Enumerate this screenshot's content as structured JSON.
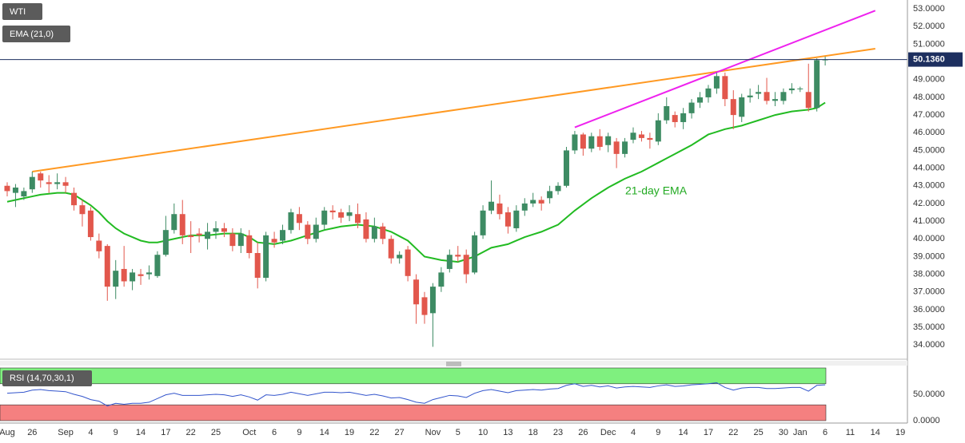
{
  "chart_data": {
    "type": "candlestick",
    "name": "WTI",
    "up_color": "#3d8b63",
    "down_color": "#e2574c",
    "grid": true,
    "categories": [
      "Aug",
      null,
      null,
      "26",
      null,
      null,
      null,
      "Sep",
      null,
      null,
      "4",
      null,
      null,
      "9",
      null,
      null,
      "14",
      null,
      null,
      "17",
      null,
      null,
      "22",
      null,
      null,
      "25",
      null,
      null,
      null,
      "Oct",
      null,
      null,
      "6",
      null,
      null,
      "9",
      null,
      null,
      "14",
      null,
      null,
      "19",
      null,
      null,
      "22",
      null,
      null,
      "27",
      null,
      null,
      null,
      "Nov",
      null,
      null,
      "5",
      null,
      null,
      "10",
      null,
      null,
      "13",
      null,
      null,
      "18",
      null,
      null,
      "23",
      null,
      null,
      "26",
      null,
      null,
      "Dec",
      null,
      null,
      "4",
      null,
      null,
      "9",
      null,
      null,
      "14",
      null,
      null,
      "17",
      null,
      null,
      "22",
      null,
      null,
      "25",
      null,
      null,
      "30",
      null,
      "Jan",
      null,
      null,
      "6",
      null,
      null,
      "11",
      null,
      null,
      "14",
      null,
      null,
      "19"
    ],
    "open": [
      43.0,
      42.6,
      42.4,
      42.8,
      43.7,
      43.2,
      43.1,
      43.2,
      42.6,
      41.9,
      41.6,
      39.9,
      39.6,
      37.3,
      38.3,
      37.6,
      38.0,
      38.0,
      37.9,
      39.1,
      40.5,
      41.4,
      40.2,
      40.3,
      40.0,
      40.4,
      40.6,
      40.3,
      39.6,
      40.2,
      39.2,
      37.8,
      40.0,
      39.9,
      40.5,
      41.4,
      40.8,
      40.0,
      40.8,
      41.6,
      41.5,
      41.3,
      41.4,
      41.1,
      40.0,
      40.7,
      40.0,
      38.9,
      39.4,
      37.7,
      36.7,
      35.8,
      37.3,
      38.3,
      39.1,
      39.1,
      38.1,
      40.2,
      41.6,
      42.0,
      41.5,
      40.6,
      41.6,
      42.0,
      42.2,
      42.3,
      42.7,
      43.0,
      45.0,
      45.9,
      45.1,
      45.8,
      45.3,
      45.5,
      44.8,
      45.6,
      45.9,
      45.7,
      45.5,
      46.7,
      47.0,
      46.6,
      47.1,
      47.7,
      48.0,
      48.5,
      49.2,
      47.9,
      46.9,
      48.0,
      48.2,
      48.3,
      47.8,
      47.8,
      48.4,
      48.5,
      48.3,
      47.4,
      50.1,
      null,
      null,
      null,
      null,
      null,
      null,
      null,
      null,
      null
    ],
    "high": [
      43.2,
      43.1,
      42.9,
      43.8,
      43.8,
      43.6,
      43.7,
      43.5,
      42.9,
      42.2,
      41.8,
      40.3,
      39.7,
      38.8,
      39.6,
      38.3,
      38.3,
      38.5,
      39.3,
      41.3,
      42.0,
      42.2,
      41.0,
      40.6,
      40.9,
      41.0,
      40.9,
      40.6,
      40.6,
      40.5,
      39.8,
      40.4,
      40.4,
      40.8,
      41.7,
      41.8,
      41.0,
      41.2,
      41.8,
      41.9,
      41.7,
      41.9,
      42.0,
      41.5,
      41.2,
      40.9,
      40.2,
      39.3,
      39.6,
      38.0,
      37.0,
      37.5,
      38.4,
      39.4,
      39.6,
      39.4,
      40.4,
      41.9,
      43.3,
      42.5,
      41.8,
      41.9,
      42.3,
      42.6,
      42.4,
      43.0,
      43.2,
      45.2,
      46.1,
      46.0,
      46.0,
      46.2,
      46.0,
      45.7,
      45.7,
      46.3,
      46.1,
      46.0,
      47.1,
      48.0,
      47.2,
      47.4,
      47.9,
      48.3,
      48.7,
      49.4,
      49.4,
      48.4,
      48.2,
      48.5,
      48.7,
      49.1,
      48.3,
      48.5,
      48.8,
      48.6,
      49.9,
      50.2,
      50.3,
      null,
      null,
      null,
      null,
      null,
      null,
      null,
      null,
      null
    ],
    "low": [
      42.4,
      41.8,
      42.2,
      42.6,
      42.9,
      42.6,
      42.8,
      42.6,
      41.6,
      40.7,
      39.9,
      38.9,
      36.5,
      36.6,
      37.3,
      37.1,
      37.4,
      37.7,
      37.8,
      39.0,
      40.3,
      39.7,
      39.2,
      39.8,
      39.4,
      40.0,
      40.1,
      39.3,
      39.2,
      38.9,
      37.2,
      37.6,
      39.5,
      39.7,
      40.3,
      40.5,
      39.7,
      39.8,
      40.5,
      41.1,
      40.9,
      41.0,
      40.6,
      39.8,
      39.8,
      39.7,
      38.6,
      38.6,
      37.6,
      35.2,
      35.2,
      33.9,
      37.0,
      38.1,
      38.7,
      37.5,
      38.0,
      40.0,
      41.4,
      41.1,
      40.3,
      40.4,
      41.3,
      41.8,
      41.6,
      42.0,
      42.5,
      42.9,
      44.8,
      44.7,
      44.9,
      45.0,
      44.9,
      44.0,
      44.6,
      45.4,
      45.5,
      45.1,
      45.3,
      46.5,
      46.3,
      46.2,
      46.8,
      47.4,
      47.7,
      48.2,
      47.5,
      46.2,
      46.6,
      47.7,
      47.9,
      47.6,
      47.5,
      47.6,
      48.2,
      48.3,
      47.2,
      47.2,
      49.8,
      null,
      null,
      null,
      null,
      null,
      null,
      null,
      null,
      null
    ],
    "close": [
      42.7,
      42.9,
      42.7,
      43.5,
      43.3,
      43.1,
      43.2,
      43.0,
      41.9,
      41.4,
      40.1,
      39.3,
      37.3,
      38.2,
      37.6,
      38.1,
      37.9,
      38.1,
      39.1,
      40.5,
      41.4,
      40.2,
      40.1,
      40.2,
      40.4,
      40.6,
      40.4,
      39.6,
      40.3,
      39.2,
      37.8,
      40.2,
      39.8,
      40.5,
      41.5,
      40.9,
      40.0,
      40.8,
      41.6,
      41.5,
      41.2,
      41.5,
      40.9,
      40.0,
      40.7,
      40.0,
      38.9,
      39.1,
      37.9,
      36.3,
      35.7,
      37.3,
      38.1,
      39.1,
      39.0,
      38.0,
      40.2,
      41.6,
      42.1,
      41.4,
      40.7,
      41.6,
      42.0,
      42.2,
      42.0,
      42.7,
      43.0,
      45.0,
      45.9,
      45.1,
      45.8,
      45.2,
      45.8,
      44.8,
      45.5,
      46.0,
      45.7,
      45.6,
      46.7,
      47.5,
      46.6,
      47.1,
      47.7,
      48.0,
      48.5,
      49.2,
      47.9,
      47.0,
      48.0,
      48.1,
      48.3,
      47.8,
      47.9,
      48.3,
      48.5,
      48.5,
      47.4,
      50.1,
      50.136,
      null,
      null,
      null,
      null,
      null,
      null,
      null,
      null,
      null
    ],
    "indicator": {
      "name": "EMA (21,0)",
      "color": "#22bb22",
      "values": [
        42.1,
        42.2,
        42.3,
        42.4,
        42.5,
        42.55,
        42.6,
        42.6,
        42.5,
        42.2,
        41.9,
        41.5,
        41.0,
        40.6,
        40.3,
        40.1,
        39.9,
        39.8,
        39.8,
        39.9,
        40.0,
        40.1,
        40.2,
        40.2,
        40.2,
        40.25,
        40.3,
        40.3,
        40.3,
        40.1,
        39.8,
        39.75,
        39.7,
        39.8,
        39.9,
        40.05,
        40.2,
        40.35,
        40.5,
        40.6,
        40.7,
        40.75,
        40.8,
        40.75,
        40.7,
        40.55,
        40.4,
        40.15,
        39.9,
        39.45,
        39.0,
        38.9,
        38.8,
        38.75,
        38.7,
        38.85,
        39.0,
        39.25,
        39.5,
        39.6,
        39.7,
        39.9,
        40.1,
        40.25,
        40.4,
        40.6,
        40.8,
        41.2,
        41.6,
        41.95,
        42.3,
        42.6,
        42.9,
        43.15,
        43.4,
        43.6,
        43.8,
        44.05,
        44.3,
        44.55,
        44.8,
        45.05,
        45.3,
        45.6,
        45.9,
        46.05,
        46.2,
        46.3,
        46.4,
        46.55,
        46.7,
        46.85,
        47.0,
        47.1,
        47.2,
        47.25,
        47.3,
        47.4,
        47.7,
        null,
        null,
        null,
        null,
        null,
        null,
        null,
        null,
        null
      ]
    },
    "annotation": "21-day EMA",
    "trendlines": [
      {
        "color": "#ff9922",
        "points": [
          [
            3,
            43.8
          ],
          [
            104,
            50.75
          ]
        ]
      },
      {
        "color": "#ee22ee",
        "points": [
          [
            68,
            46.3
          ],
          [
            104,
            52.9
          ]
        ]
      }
    ],
    "last_price": {
      "value": 50.136,
      "label": "50.1360"
    },
    "ylim": [
      33.2,
      53.5
    ],
    "yticks": [
      {
        "value": 34,
        "label": "34.0000"
      },
      {
        "value": 35,
        "label": "35.0000"
      },
      {
        "value": 36,
        "label": "36.0000"
      },
      {
        "value": 37,
        "label": "37.0000"
      },
      {
        "value": 38,
        "label": "38.0000"
      },
      {
        "value": 39,
        "label": "39.0000"
      },
      {
        "value": 40,
        "label": "40.0000"
      },
      {
        "value": 41,
        "label": "41.0000"
      },
      {
        "value": 42,
        "label": "42.0000"
      },
      {
        "value": 43,
        "label": "43.0000"
      },
      {
        "value": 44,
        "label": "44.0000"
      },
      {
        "value": 45,
        "label": "45.0000"
      },
      {
        "value": 46,
        "label": "46.0000"
      },
      {
        "value": 47,
        "label": "47.0000"
      },
      {
        "value": 48,
        "label": "48.0000"
      },
      {
        "value": 49,
        "label": "49.0000"
      },
      {
        "value": 50,
        "label": "50.0000"
      },
      {
        "value": 51,
        "label": "51.0000"
      },
      {
        "value": 52,
        "label": "52.0000"
      },
      {
        "value": 53,
        "label": "53.0000"
      }
    ],
    "rsi": {
      "type": "line",
      "name": "RSI (14,70,30,1)",
      "color": "#3355cc",
      "values": [
        52,
        53,
        54,
        58,
        59,
        57,
        56,
        55,
        50,
        46,
        40,
        37,
        28,
        33,
        31,
        33,
        33,
        35,
        42,
        49,
        52,
        48,
        48,
        48,
        49,
        50,
        49,
        46,
        49,
        45,
        39,
        49,
        48,
        50,
        54,
        51,
        48,
        51,
        54,
        54,
        53,
        54,
        51,
        48,
        50,
        47,
        43,
        44,
        40,
        35,
        33,
        40,
        44,
        48,
        47,
        44,
        52,
        57,
        59,
        56,
        53,
        57,
        58,
        59,
        58,
        60,
        61,
        67,
        70,
        65,
        67,
        64,
        66,
        62,
        64,
        65,
        64,
        63,
        66,
        68,
        65,
        66,
        68,
        69,
        70,
        72,
        63,
        58,
        62,
        63,
        63,
        61,
        61,
        62,
        63,
        63,
        56,
        67,
        68,
        null,
        null,
        null,
        null,
        null,
        null,
        null,
        null,
        null
      ],
      "ylim": [
        0,
        100
      ],
      "yticks": [
        {
          "value": 0,
          "label": "0.0000"
        },
        {
          "value": 50,
          "label": "50.0000"
        }
      ],
      "bands": [
        {
          "range": [
            70,
            100
          ],
          "color": "#7ff07f"
        },
        {
          "range": [
            0,
            30
          ],
          "color": "#f58080"
        }
      ]
    }
  }
}
